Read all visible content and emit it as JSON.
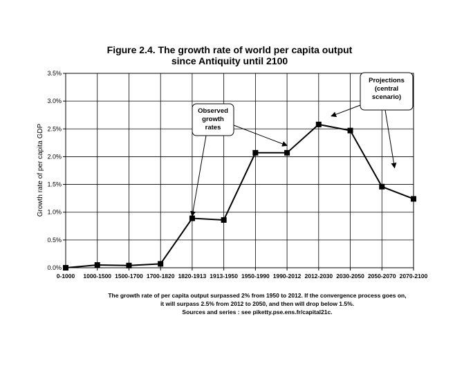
{
  "chart_data": {
    "type": "line",
    "title_lines": [
      "Figure 2.4. The growth rate of world per capita output",
      "since Antiquity until 2100"
    ],
    "xlabel": "",
    "ylabel": "Growth rate of per capita GDP",
    "categories": [
      "0-1000",
      "1000-1500",
      "1500-1700",
      "1700-1820",
      "1820-1913",
      "1913-1950",
      "1950-1990",
      "1990-2012",
      "2012-2030",
      "2030-2050",
      "2050-2070",
      "2070-2100"
    ],
    "values": [
      0.0,
      0.05,
      0.04,
      0.07,
      0.89,
      0.86,
      2.07,
      2.07,
      2.58,
      2.47,
      1.46,
      1.24
    ],
    "ylim": [
      0,
      3.5
    ],
    "yticks": [
      0,
      0.5,
      1.0,
      1.5,
      2.0,
      2.5,
      3.0,
      3.5
    ],
    "ytick_labels": [
      "0.0%",
      "0.5%",
      "1.0%",
      "1.5%",
      "2.0%",
      "2.5%",
      "3.0%",
      "3.5%"
    ],
    "grid": true,
    "marker": "square",
    "line_color": "#000000",
    "annotations": [
      {
        "id": "observed",
        "lines": [
          "Observed",
          "growth",
          "rates"
        ],
        "arrows_to": [
          {
            "category_index": 4,
            "value": 0.93
          },
          {
            "category_index": 7,
            "value": 2.2
          }
        ]
      },
      {
        "id": "projections",
        "lines": [
          "Projections",
          "(central",
          "scenario)"
        ],
        "arrows_to": [
          {
            "category_index": 8.4,
            "value": 2.73
          },
          {
            "category_index": 10.4,
            "value": 1.8
          }
        ]
      }
    ],
    "caption_lines": [
      "The growth rate of per capita output surpassed 2% from 1950 to 2012. If the convergence process goes on,",
      "it will surpass 2.5% from 2012 to 2050, and then will drop below 1.5%.",
      "Sources and series : see piketty.pse.ens.fr/capital21c."
    ]
  }
}
